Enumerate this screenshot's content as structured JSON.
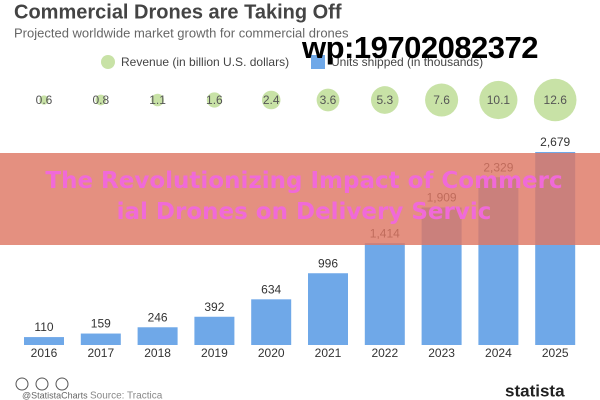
{
  "chart_data": {
    "type": "bar",
    "title": "Commercial Drones are Taking Off",
    "subtitle": "Projected worldwide market growth for commercial drones",
    "categories": [
      "2016",
      "2017",
      "2018",
      "2019",
      "2020",
      "2021",
      "2022",
      "2023",
      "2024",
      "2025"
    ],
    "series": [
      {
        "name": "Revenue (in billion U.S. dollars)",
        "color": "#c8e2a6",
        "mark": "bubble",
        "values": [
          0.6,
          0.8,
          1.1,
          1.6,
          2.4,
          3.6,
          5.3,
          7.6,
          10.1,
          12.6
        ]
      },
      {
        "name": "Units shipped (in thousands)",
        "color": "#6fa8e8",
        "mark": "bar",
        "values": [
          110,
          159,
          246,
          392,
          634,
          996,
          1414,
          1909,
          2329,
          2679
        ],
        "value_labels": [
          "110",
          "159",
          "246",
          "392",
          "634",
          "996",
          "1,414",
          "1,909",
          "2,329",
          "2,679"
        ]
      }
    ]
  },
  "overlay": {
    "watermark": "wp:19702082372",
    "banner": "The Revolutionizing Impact of Commercial Drones on Delivery Servic"
  },
  "footer": {
    "credit": "@StatistaCharts",
    "source": "Source: Tractica",
    "brand": "statista"
  }
}
